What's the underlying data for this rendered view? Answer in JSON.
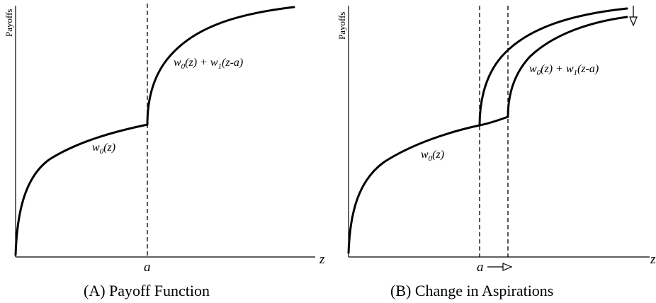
{
  "panel_a": {
    "ylabel": "Payoffs",
    "xlabel": "z",
    "threshold_label": "a",
    "lower_curve_label": "w0(z)",
    "upper_curve_label": "w0(z) + w1(z-a)",
    "caption_tag": "(A)",
    "caption_text": "Payoff Function"
  },
  "panel_b": {
    "ylabel": "Payoffs",
    "xlabel": "z",
    "threshold_label": "a",
    "lower_curve_label": "w0(z)",
    "upper_curve_label": "w0(z) + w1(z-a)",
    "caption_tag": "(B)",
    "caption_text": "Change in Aspirations"
  }
}
